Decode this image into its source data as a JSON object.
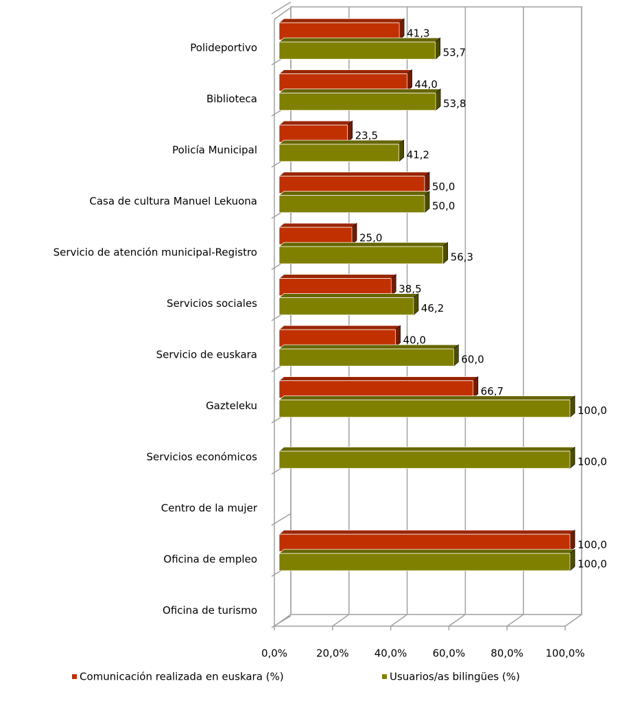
{
  "chart_data": {
    "type": "bar3d-horizontal",
    "categories": [
      "Polideportivo",
      "Biblioteca",
      "Policía Municipal",
      "Casa de cultura Manuel Lekuona",
      "Servicio de atención municipal-Registro",
      "Servicios sociales",
      "Servicio de euskara",
      "Gazteleku",
      "Servicios económicos",
      "Centro de la mujer",
      "Oficina de empleo",
      "Oficina de turismo"
    ],
    "series": [
      {
        "name": "Comunicación realizada en euskara (%)",
        "color": "#c03000",
        "values": [
          41.3,
          44.0,
          23.5,
          50.0,
          25.0,
          38.5,
          40.0,
          66.7,
          null,
          null,
          100.0,
          null
        ],
        "value_labels": [
          "41,3",
          "44,0",
          "23,5",
          "50,0",
          "25,0",
          "38,5",
          "40,0",
          "66,7",
          null,
          null,
          "100,0",
          null
        ]
      },
      {
        "name": "Usuarios/as bilingües (%)",
        "color": "#808000",
        "values": [
          53.7,
          53.8,
          41.2,
          50.0,
          56.3,
          46.2,
          60.0,
          100.0,
          100.0,
          null,
          100.0,
          null
        ],
        "value_labels": [
          "53,7",
          "53,8",
          "41,2",
          "50,0",
          "56,3",
          "46,2",
          "60,0",
          "100,0",
          "100,0",
          null,
          "100,0",
          null
        ]
      }
    ],
    "xlim": [
      0,
      100
    ],
    "xticks": [
      {
        "value": 0,
        "label": "0,0%"
      },
      {
        "value": 20,
        "label": "20,0%"
      },
      {
        "value": 40,
        "label": "40,0%"
      },
      {
        "value": 60,
        "label": "60,0%"
      },
      {
        "value": 80,
        "label": "80,0%"
      },
      {
        "value": 100,
        "label": "100,0%"
      }
    ],
    "grid": true,
    "legend": "bottom"
  }
}
